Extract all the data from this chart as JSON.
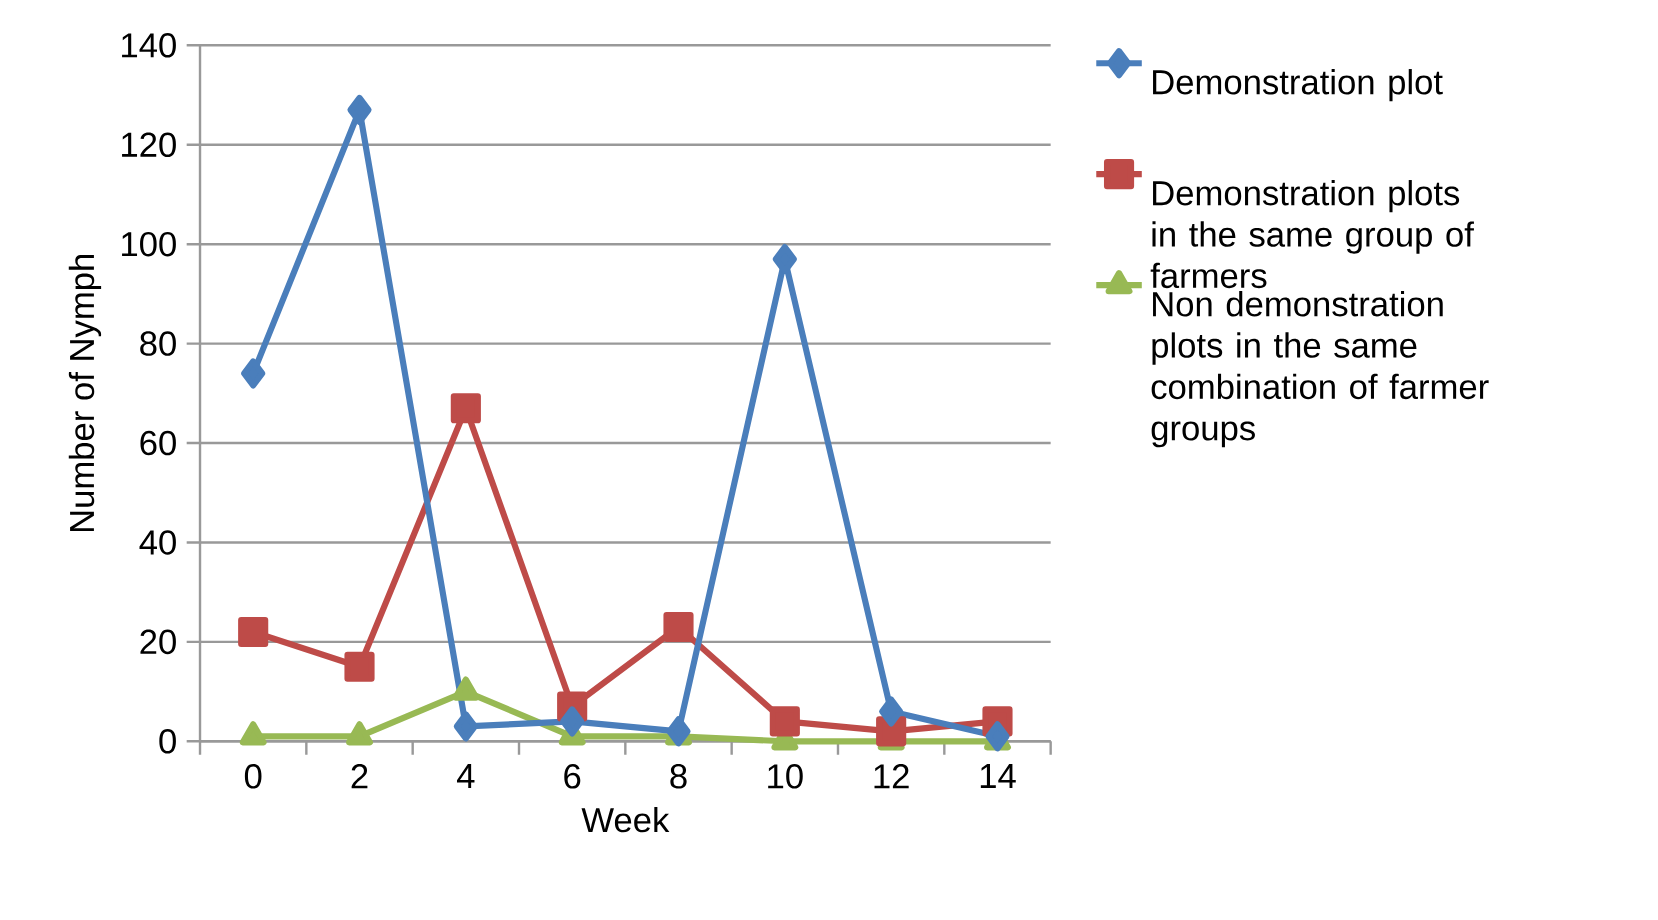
{
  "chart_data": {
    "type": "line",
    "xlabel": "Week",
    "ylabel": "Number of Nymph",
    "categories": [
      "0",
      "2",
      "4",
      "6",
      "8",
      "10",
      "12",
      "14"
    ],
    "ylim": [
      0,
      140
    ],
    "yticks": [
      0,
      20,
      40,
      60,
      80,
      100,
      120,
      140
    ],
    "grid": "y",
    "legend": "right",
    "series": [
      {
        "name": "Demonstration plot",
        "color": "#4a7ebb",
        "marker": "diamond",
        "values": [
          74,
          127,
          3,
          4,
          2,
          97,
          6,
          1
        ]
      },
      {
        "name": "Demonstration plots in the same group of farmers",
        "color": "#be4b48",
        "marker": "square",
        "values": [
          22,
          15,
          67,
          7,
          23,
          4,
          2,
          4
        ]
      },
      {
        "name": "Non demonstration plots in the same combination of farmer groups",
        "color": "#98b954",
        "marker": "triangle",
        "values": [
          1,
          1,
          10,
          1,
          1,
          0,
          0,
          0
        ]
      }
    ]
  }
}
